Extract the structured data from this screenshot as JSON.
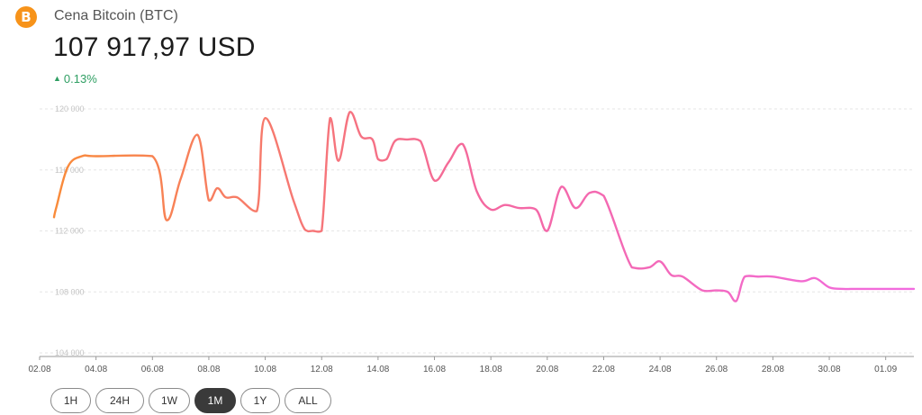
{
  "header": {
    "logo_icon": "bitcoin-icon",
    "coin_name": "Cena Bitcoin (BTC)",
    "price": "107 917,97 USD",
    "change": "0.13%",
    "change_icon": "triangle-up-icon",
    "change_color": "#2e9e62"
  },
  "ranges": [
    {
      "label": "1H",
      "active": false
    },
    {
      "label": "24H",
      "active": false
    },
    {
      "label": "1W",
      "active": false
    },
    {
      "label": "1M",
      "active": true
    },
    {
      "label": "1Y",
      "active": false
    },
    {
      "label": "ALL",
      "active": false
    }
  ],
  "chart_data": {
    "type": "line",
    "title": "",
    "xlabel": "",
    "ylabel": "",
    "grid": true,
    "line_gradient": [
      "#f98b3a",
      "#f468a0",
      "#f26be0"
    ],
    "y_ticks": [
      104000,
      108000,
      112000,
      116000,
      120000
    ],
    "y_tick_labels": [
      "104 000",
      "108 000",
      "112 000",
      "116 000",
      "120 000"
    ],
    "ylim": [
      104000,
      120000
    ],
    "x_ticks": [
      0,
      2,
      4,
      6,
      8,
      10,
      12,
      14,
      16,
      18,
      20,
      22,
      24,
      26,
      28,
      30
    ],
    "x_tick_labels": [
      "02.08",
      "04.08",
      "06.08",
      "08.08",
      "10.08",
      "12.08",
      "14.08",
      "16.08",
      "18.08",
      "20.08",
      "22.08",
      "24.08",
      "26.08",
      "28.08",
      "30.08",
      "01.09"
    ],
    "xlim": [
      0,
      31
    ],
    "x": [
      0,
      0.6,
      1.0,
      1.5,
      2.0,
      4.0,
      4.5,
      5.0,
      5.6,
      6.0,
      6.3,
      6.6,
      7.0,
      7.7,
      8.0,
      9.0,
      9.4,
      9.7,
      10.0,
      10.3,
      10.6,
      11.0,
      11.4,
      11.8,
      12.0,
      12.3,
      12.6,
      13.0,
      13.5,
      14.0,
      14.5,
      15.0,
      15.5,
      16.0,
      16.5,
      17.0,
      17.6,
      18.0,
      18.5,
      19.0,
      19.5,
      20.0,
      21.0,
      21.6,
      22.0,
      22.4,
      22.8,
      23.5,
      24.0,
      24.4,
      24.7,
      25.0,
      25.5,
      26.0,
      27.0,
      27.5,
      28.0,
      28.5,
      29.0,
      30.0,
      30.5,
      31.0
    ],
    "y": [
      112900,
      113600,
      116200,
      116900,
      116900,
      116900,
      112700,
      115400,
      118300,
      114000,
      114800,
      114200,
      114200,
      113300,
      119400,
      114000,
      112100,
      112000,
      112000,
      119400,
      116600,
      119800,
      118200,
      118000,
      116700,
      116700,
      117900,
      118000,
      117900,
      115300,
      116500,
      117700,
      114600,
      113400,
      113700,
      113500,
      113400,
      112000,
      114900,
      113500,
      114500,
      114300,
      109600,
      109600,
      110000,
      109100,
      109000,
      108100,
      108100,
      108000,
      107400,
      109000,
      109000,
      109000,
      108700,
      108900,
      108300,
      108200,
      108200,
      108200,
      108200,
      108200
    ]
  }
}
